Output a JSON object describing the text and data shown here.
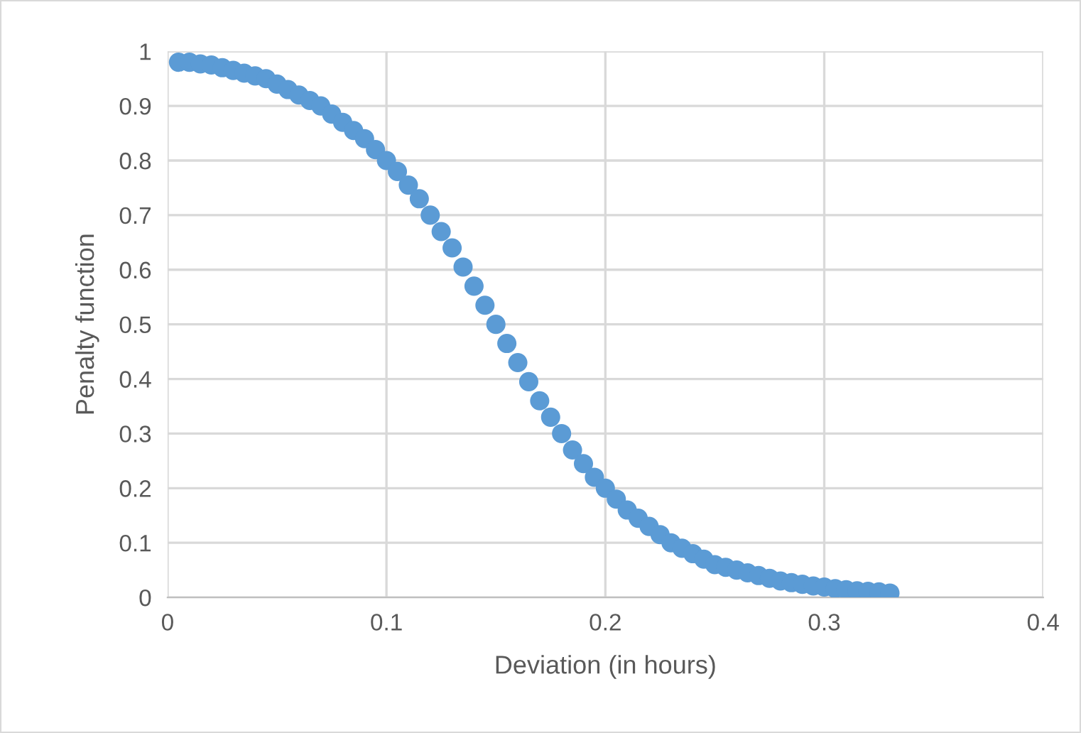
{
  "chart_data": {
    "type": "scatter",
    "xlabel": "Deviation (in hours)",
    "ylabel": "Penalty function",
    "x": [
      0.005,
      0.01,
      0.015,
      0.02,
      0.025,
      0.03,
      0.035,
      0.04,
      0.045,
      0.05,
      0.055,
      0.06,
      0.065,
      0.07,
      0.075,
      0.08,
      0.085,
      0.09,
      0.095,
      0.1,
      0.105,
      0.11,
      0.115,
      0.12,
      0.125,
      0.13,
      0.135,
      0.14,
      0.145,
      0.15,
      0.155,
      0.16,
      0.165,
      0.17,
      0.175,
      0.18,
      0.185,
      0.19,
      0.195,
      0.2,
      0.205,
      0.21,
      0.215,
      0.22,
      0.225,
      0.23,
      0.235,
      0.24,
      0.245,
      0.25,
      0.255,
      0.26,
      0.265,
      0.27,
      0.275,
      0.28,
      0.285,
      0.29,
      0.295,
      0.3,
      0.305,
      0.31,
      0.315,
      0.32,
      0.325,
      0.33
    ],
    "series": [
      {
        "color": "#5b9bd5",
        "values": [
          0.98,
          0.98,
          0.977,
          0.975,
          0.97,
          0.965,
          0.96,
          0.955,
          0.95,
          0.94,
          0.93,
          0.92,
          0.91,
          0.9,
          0.885,
          0.87,
          0.855,
          0.84,
          0.82,
          0.8,
          0.78,
          0.755,
          0.73,
          0.7,
          0.67,
          0.64,
          0.605,
          0.57,
          0.535,
          0.5,
          0.465,
          0.43,
          0.395,
          0.36,
          0.33,
          0.3,
          0.27,
          0.245,
          0.22,
          0.2,
          0.18,
          0.16,
          0.145,
          0.13,
          0.115,
          0.1,
          0.09,
          0.08,
          0.07,
          0.06,
          0.055,
          0.05,
          0.045,
          0.04,
          0.035,
          0.03,
          0.027,
          0.024,
          0.021,
          0.019,
          0.016,
          0.014,
          0.012,
          0.011,
          0.01,
          0.008
        ]
      }
    ],
    "xlim": [
      0,
      0.4
    ],
    "xticks": [
      0,
      0.1,
      0.2,
      0.3,
      0.4
    ],
    "ylim": [
      0,
      1
    ],
    "yticks": [
      0,
      0.1,
      0.2,
      0.3,
      0.4,
      0.5,
      0.6,
      0.7,
      0.8,
      0.9,
      1
    ],
    "grid": true,
    "marker": "circle",
    "legend": false
  }
}
